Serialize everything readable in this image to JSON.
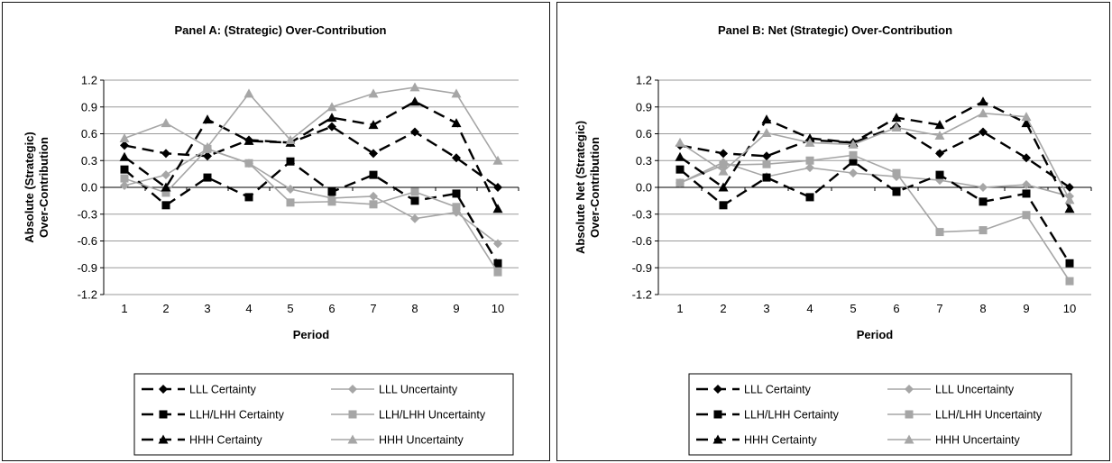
{
  "chart_data": [
    {
      "type": "line",
      "title": "Panel A: (Strategic) Over-Contribution",
      "xlabel": "Period",
      "ylabel": "Absolute (Strategic) Over-Contribution",
      "x": [
        1,
        2,
        3,
        4,
        5,
        6,
        7,
        8,
        9,
        10
      ],
      "xticks": [
        "1",
        "2",
        "3",
        "4",
        "5",
        "6",
        "7",
        "8",
        "9",
        "10"
      ],
      "yticks": [
        "1.2",
        "0.9",
        "0.6",
        "0.3",
        "0.0",
        "-0.3",
        "-0.6",
        "-0.9",
        "-1.2"
      ],
      "ylim": [
        -1.2,
        1.2
      ],
      "grid": true,
      "legend_position": "bottom",
      "series": [
        {
          "name": "LLL Certainty",
          "color": "#000000",
          "marker": "diamond",
          "dash": true,
          "values": [
            0.47,
            0.38,
            0.35,
            0.53,
            0.5,
            0.68,
            0.38,
            0.62,
            0.33,
            0.0
          ]
        },
        {
          "name": "LLL Uncertainty",
          "color": "#a6a6a6",
          "marker": "diamond",
          "dash": false,
          "values": [
            0.02,
            0.14,
            0.43,
            0.27,
            -0.02,
            -0.12,
            -0.1,
            -0.35,
            -0.28,
            -0.63
          ]
        },
        {
          "name": "LLH/LHH Certainty",
          "color": "#000000",
          "marker": "square",
          "dash": true,
          "values": [
            0.2,
            -0.2,
            0.11,
            -0.11,
            0.29,
            -0.05,
            0.14,
            -0.15,
            -0.07,
            -0.85
          ]
        },
        {
          "name": "LLH/LHH Uncertainty",
          "color": "#a6a6a6",
          "marker": "square",
          "dash": false,
          "values": [
            0.1,
            -0.06,
            0.43,
            0.27,
            -0.17,
            -0.16,
            -0.19,
            -0.05,
            -0.22,
            -0.95
          ]
        },
        {
          "name": "HHH Certainty",
          "color": "#000000",
          "marker": "triangle",
          "dash": true,
          "values": [
            0.34,
            0.0,
            0.76,
            0.52,
            0.5,
            0.78,
            0.7,
            0.96,
            0.72,
            -0.24
          ]
        },
        {
          "name": "HHH Uncertainty",
          "color": "#a6a6a6",
          "marker": "triangle",
          "dash": false,
          "values": [
            0.55,
            0.72,
            0.45,
            1.05,
            0.53,
            0.9,
            1.05,
            1.12,
            1.05,
            0.3
          ]
        }
      ]
    },
    {
      "type": "line",
      "title": "Panel B: Net (Strategic) Over-Contribution",
      "xlabel": "Period",
      "ylabel": "Absolute Net (Strategic) Over-Contribution",
      "x": [
        1,
        2,
        3,
        4,
        5,
        6,
        7,
        8,
        9,
        10
      ],
      "xticks": [
        "1",
        "2",
        "3",
        "4",
        "5",
        "6",
        "7",
        "8",
        "9",
        "10"
      ],
      "yticks": [
        "1.2",
        "0.9",
        "0.6",
        "0.3",
        "0.0",
        "-0.3",
        "-0.6",
        "-0.9",
        "-1.2"
      ],
      "ylim": [
        -1.2,
        1.2
      ],
      "grid": true,
      "legend_position": "bottom",
      "series": [
        {
          "name": "LLL Certainty",
          "color": "#000000",
          "marker": "diamond",
          "dash": true,
          "values": [
            0.47,
            0.38,
            0.35,
            0.53,
            0.5,
            0.68,
            0.38,
            0.62,
            0.33,
            0.0
          ]
        },
        {
          "name": "LLL Uncertainty",
          "color": "#a6a6a6",
          "marker": "diamond",
          "dash": false,
          "values": [
            0.05,
            0.28,
            0.12,
            0.22,
            0.16,
            0.12,
            0.08,
            0.0,
            0.03,
            -0.1
          ]
        },
        {
          "name": "LLH/LHH Certainty",
          "color": "#000000",
          "marker": "square",
          "dash": true,
          "values": [
            0.2,
            -0.2,
            0.11,
            -0.11,
            0.29,
            -0.05,
            0.14,
            -0.16,
            -0.07,
            -0.85
          ]
        },
        {
          "name": "LLH/LHH Uncertainty",
          "color": "#a6a6a6",
          "marker": "square",
          "dash": false,
          "values": [
            0.05,
            0.25,
            0.26,
            0.3,
            0.36,
            0.16,
            -0.5,
            -0.48,
            -0.31,
            -1.05
          ]
        },
        {
          "name": "HHH Certainty",
          "color": "#000000",
          "marker": "triangle",
          "dash": true,
          "values": [
            0.34,
            0.0,
            0.76,
            0.55,
            0.5,
            0.78,
            0.7,
            0.96,
            0.72,
            -0.24
          ]
        },
        {
          "name": "HHH Uncertainty",
          "color": "#a6a6a6",
          "marker": "triangle",
          "dash": false,
          "values": [
            0.5,
            0.18,
            0.61,
            0.5,
            0.48,
            0.67,
            0.58,
            0.83,
            0.79,
            -0.14
          ]
        }
      ]
    }
  ]
}
